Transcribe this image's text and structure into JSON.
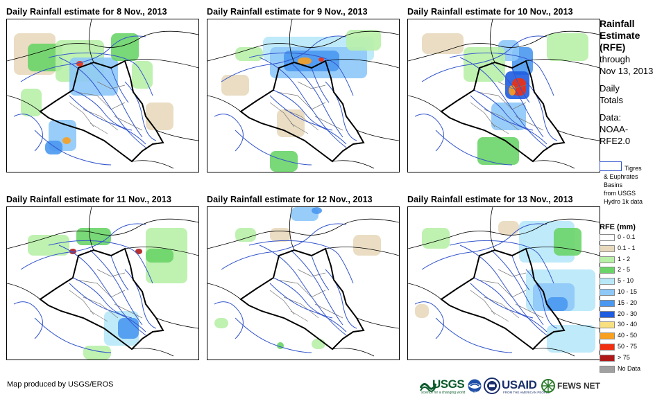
{
  "panels": [
    {
      "title": "Daily Rainfall estimate for 8 Nov., 2013"
    },
    {
      "title": "Daily Rainfall estimate for 9 Nov., 2013"
    },
    {
      "title": "Daily Rainfall estimate for 10 Nov., 2013"
    },
    {
      "title": "Daily Rainfall estimate for 11 Nov., 2013"
    },
    {
      "title": "Daily Rainfall estimate for 12 Nov., 2013"
    },
    {
      "title": "Daily Rainfall estimate for 13 Nov., 2013"
    }
  ],
  "side": {
    "title_lines": [
      "Rainfall",
      "Estimate",
      "(RFE)"
    ],
    "through": "through",
    "date": "Nov 13, 2013",
    "daily_lines": [
      "Daily",
      "Totals"
    ],
    "data_lines": [
      "Data:",
      "NOAA-",
      "RFE2.0"
    ],
    "basin_label": "Tigres",
    "basin_lines": [
      "& Euphrates",
      "Basins",
      "from USGS",
      "Hydro 1k data"
    ]
  },
  "legend": {
    "title": "RFE (mm)",
    "items": [
      {
        "label": "0 - 0.1",
        "color": "#ffffff"
      },
      {
        "label": "0.1 - 1",
        "color": "#e8d9bd"
      },
      {
        "label": "1 - 2",
        "color": "#b8f0a8"
      },
      {
        "label": "2 - 5",
        "color": "#6ad468"
      },
      {
        "label": "5 - 10",
        "color": "#b8e8f8"
      },
      {
        "label": "10 - 15",
        "color": "#8ec8f8"
      },
      {
        "label": "15 - 20",
        "color": "#4a98f0"
      },
      {
        "label": "20 - 30",
        "color": "#1e5ce0"
      },
      {
        "label": "30 - 40",
        "color": "#f8e080"
      },
      {
        "label": "40 - 50",
        "color": "#f8a020"
      },
      {
        "label": "50 - 75",
        "color": "#f03010"
      },
      {
        "label": "> 75",
        "color": "#b01818"
      },
      {
        "label": "No Data",
        "color": "#a0a0a0"
      }
    ]
  },
  "footer": "Map produced by USGS/EROS",
  "logos": {
    "usgs": "USGS",
    "usgs_tag": "science for a changing world",
    "noaa": "NOAA",
    "usaid": "USAID",
    "usaid_tag": "FROM THE AMERICAN PEOPLE",
    "fews": "FEWS NET"
  }
}
